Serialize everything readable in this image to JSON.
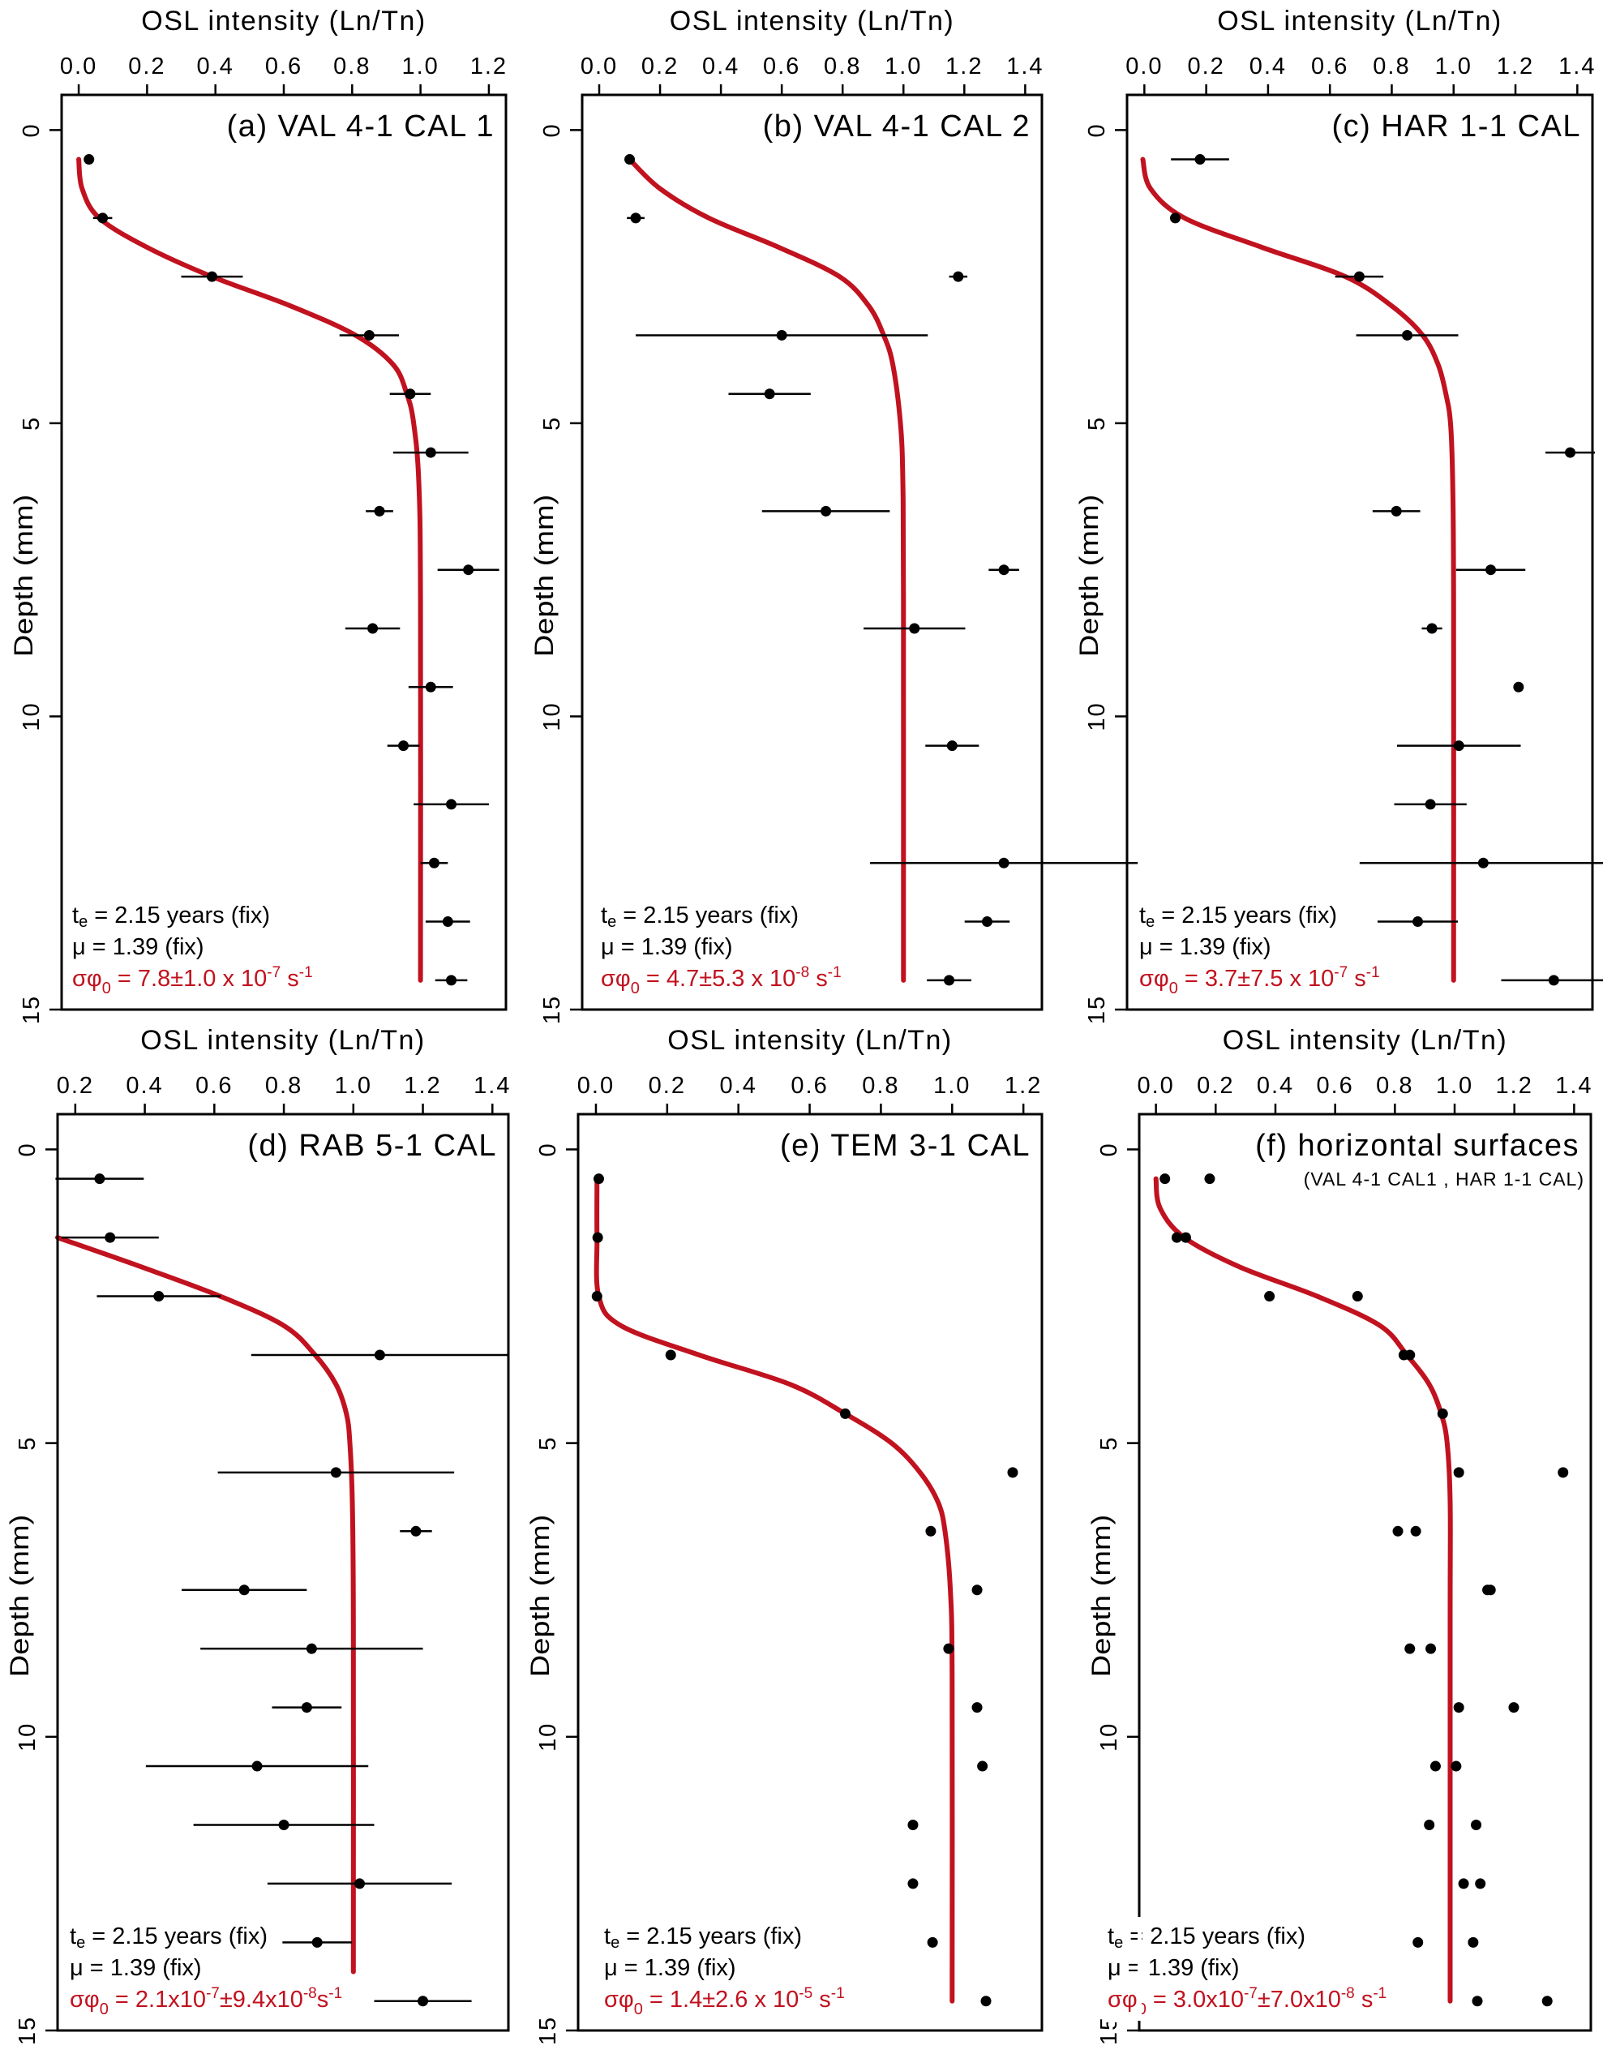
{
  "colors": {
    "fit_curve": "#c1121f",
    "points": "#000000",
    "sigma_text": "#c1121f"
  },
  "chart_data": [
    {
      "type": "scatter",
      "title": "(a) VAL 4-1 CAL 1",
      "xlabel": "OSL intensity (Ln/Tn)",
      "ylabel": "Depth (mm)",
      "x_axis_position": "top",
      "y_reversed": true,
      "xlim": [
        -0.05,
        1.25
      ],
      "ylim": [
        -0.6,
        15
      ],
      "xticks": [
        "0.0",
        "0.2",
        "0.4",
        "0.6",
        "0.8",
        "1.0",
        "1.2"
      ],
      "yticks": [
        "0",
        "5",
        "10",
        "15"
      ],
      "points": {
        "depth": [
          0.5,
          1.5,
          2.5,
          3.5,
          4.5,
          5.5,
          6.5,
          7.5,
          8.5,
          9.5,
          10.5,
          11.5,
          12.5,
          13.5,
          14.5
        ],
        "value": [
          0.03,
          0.07,
          0.39,
          0.85,
          0.97,
          1.03,
          0.88,
          1.14,
          0.86,
          1.03,
          0.95,
          1.09,
          1.04,
          1.08,
          1.09
        ],
        "error": [
          0,
          0.028,
          0.09,
          0.087,
          0.06,
          0.11,
          0.04,
          0.09,
          0.08,
          0.065,
          0.047,
          0.11,
          0.04,
          0.065,
          0.047
        ]
      },
      "fit_curve": {
        "depth": [
          0.5,
          1.0,
          1.5,
          2.0,
          2.5,
          3.0,
          3.5,
          4.0,
          4.5,
          5.0,
          6.0,
          8.0,
          14.5
        ],
        "value": [
          0.0,
          0.01,
          0.06,
          0.2,
          0.39,
          0.62,
          0.81,
          0.92,
          0.96,
          0.98,
          0.995,
          1.0,
          1.0
        ]
      },
      "annotations": {
        "te": {
          "main": "t",
          "sub": "e",
          "rest": " = 2.15 years (fix)"
        },
        "mu": "μ = 1.39 (fix)",
        "sigma": [
          {
            "text": "σφ"
          },
          {
            "sub": "0"
          },
          {
            "text": " = 7.8±1.0 x 10"
          },
          {
            "sup": "-7"
          },
          {
            "text": " s"
          },
          {
            "sup": "-1"
          }
        ]
      }
    },
    {
      "type": "scatter",
      "title": "(b) VAL 4-1 CAL 2",
      "xlabel": "OSL intensity (Ln/Tn)",
      "ylabel": "Depth (mm)",
      "x_axis_position": "top",
      "y_reversed": true,
      "xlim": [
        -0.056,
        1.455
      ],
      "ylim": [
        -0.6,
        15
      ],
      "xticks": [
        "0.0",
        "0.2",
        "0.4",
        "0.6",
        "0.8",
        "1.0",
        "1.2",
        "1.4"
      ],
      "yticks": [
        "0",
        "5",
        "10",
        "15"
      ],
      "points": {
        "depth": [
          0.5,
          1.5,
          2.5,
          3.5,
          4.5,
          6.5,
          7.5,
          8.5,
          10.5,
          12.5,
          13.5,
          14.5
        ],
        "value": [
          0.1,
          0.12,
          1.18,
          0.6,
          0.56,
          0.745,
          1.33,
          1.036,
          1.16,
          1.33,
          1.275,
          1.15
        ],
        "error": [
          0,
          0.029,
          0.03,
          0.48,
          0.135,
          0.21,
          0.05,
          0.167,
          0.088,
          0.44,
          0.074,
          0.073
        ]
      },
      "fit_curve": {
        "depth": [
          0.5,
          1.0,
          1.5,
          2.0,
          2.5,
          3.0,
          3.5,
          4.0,
          5.0,
          6.0,
          8.0,
          14.5
        ],
        "value": [
          0.1,
          0.2,
          0.36,
          0.59,
          0.79,
          0.886,
          0.935,
          0.965,
          0.99,
          0.998,
          1.0,
          1.0
        ]
      },
      "annotations": {
        "te": {
          "main": "t",
          "sub": "e",
          "rest": " = 2.15 years (fix)"
        },
        "mu": "μ = 1.39 (fix)",
        "sigma": [
          {
            "text": "σφ"
          },
          {
            "sub": "0"
          },
          {
            "text": " = 4.7±5.3 x 10"
          },
          {
            "sup": "-8"
          },
          {
            "text": " s"
          },
          {
            "sup": "-1"
          }
        ]
      }
    },
    {
      "type": "scatter",
      "title": "(c) HAR 1-1 CAL",
      "xlabel": "OSL intensity (Ln/Tn)",
      "ylabel": "Depth (mm)",
      "x_axis_position": "top",
      "y_reversed": true,
      "xlim": [
        -0.056,
        1.449
      ],
      "ylim": [
        -0.6,
        15
      ],
      "xticks": [
        "0.0",
        "0.2",
        "0.4",
        "0.6",
        "0.8",
        "1.0",
        "1.2",
        "1.4"
      ],
      "yticks": [
        "0",
        "5",
        "10",
        "15"
      ],
      "points": {
        "depth": [
          0.5,
          1.5,
          2.5,
          3.5,
          5.5,
          6.5,
          7.5,
          8.5,
          9.5,
          10.5,
          11.5,
          12.5,
          13.5,
          14.5
        ],
        "value": [
          0.18,
          0.1,
          0.695,
          0.85,
          1.377,
          0.815,
          1.12,
          0.93,
          1.21,
          1.017,
          0.925,
          1.096,
          0.884,
          1.324
        ],
        "error": [
          0.094,
          0,
          0.078,
          0.165,
          0.08,
          0.077,
          0.112,
          0.033,
          0,
          0.2,
          0.117,
          0.4,
          0.13,
          0.17
        ]
      },
      "fit_curve": {
        "depth": [
          0.5,
          1.0,
          1.5,
          2.0,
          2.5,
          3.0,
          3.5,
          4.0,
          4.5,
          5.0,
          6.0,
          8.0,
          14.5
        ],
        "value": [
          -0.005,
          0.02,
          0.13,
          0.38,
          0.65,
          0.8,
          0.9,
          0.95,
          0.975,
          0.99,
          0.997,
          1.0,
          1.0
        ]
      },
      "annotations": {
        "te": {
          "main": "t",
          "sub": "e",
          "rest": " = 2.15 years (fix)"
        },
        "mu": "μ = 1.39 (fix)",
        "sigma": [
          {
            "text": "σφ"
          },
          {
            "sub": "0"
          },
          {
            "text": " = 3.7±7.5 x 10"
          },
          {
            "sup": "-7"
          },
          {
            "text": " s"
          },
          {
            "sup": "-1"
          }
        ]
      }
    },
    {
      "type": "scatter",
      "title": "(d) RAB 5-1 CAL",
      "xlabel": "OSL intensity (Ln/Tn)",
      "ylabel": "Depth (mm)",
      "x_axis_position": "top",
      "y_reversed": true,
      "xlim": [
        0.149,
        1.446
      ],
      "ylim": [
        -0.6,
        15
      ],
      "xticks": [
        "0.2",
        "0.4",
        "0.6",
        "0.8",
        "1.0",
        "1.2",
        "1.4"
      ],
      "yticks": [
        "0",
        "5",
        "10",
        "15"
      ],
      "points": {
        "depth": [
          0.5,
          1.5,
          2.5,
          3.5,
          5.5,
          6.5,
          7.5,
          8.5,
          9.5,
          10.5,
          11.5,
          12.5,
          13.5,
          14.5
        ],
        "value": [
          0.27,
          0.3,
          0.44,
          1.076,
          0.95,
          1.18,
          0.686,
          0.88,
          0.866,
          0.723,
          0.8,
          1.018,
          0.896,
          1.2
        ],
        "error": [
          0.127,
          0.14,
          0.178,
          0.37,
          0.34,
          0.046,
          0.18,
          0.32,
          0.1,
          0.32,
          0.26,
          0.265,
          0.1,
          0.14
        ]
      },
      "fit_curve": {
        "depth": [
          1.5,
          2.0,
          2.5,
          3.0,
          3.5,
          4.0,
          4.5,
          5.0,
          6.0,
          8.0,
          14.0
        ],
        "value": [
          0.149,
          0.39,
          0.617,
          0.8,
          0.89,
          0.95,
          0.98,
          0.99,
          0.997,
          1.0,
          1.0
        ]
      },
      "annotations": {
        "te": {
          "main": "t",
          "sub": "e",
          "rest": " = 2.15 years (fix)"
        },
        "mu": "μ = 1.39 (fix)",
        "sigma": [
          {
            "text": "σφ"
          },
          {
            "sub": "0"
          },
          {
            "text": " = 2.1x10"
          },
          {
            "sup": "-7"
          },
          {
            "text": "±9.4x10"
          },
          {
            "sup": "-8"
          },
          {
            "text": "s"
          },
          {
            "sup": "-1"
          }
        ]
      }
    },
    {
      "type": "scatter",
      "title": "(e) TEM 3-1 CAL",
      "xlabel": "OSL intensity (Ln/Tn)",
      "ylabel": "Depth (mm)",
      "x_axis_position": "top",
      "y_reversed": true,
      "xlim": [
        -0.05,
        1.252
      ],
      "ylim": [
        -0.6,
        15
      ],
      "xticks": [
        "0.0",
        "0.2",
        "0.4",
        "0.6",
        "0.8",
        "1.0",
        "1.2"
      ],
      "yticks": [
        "0",
        "5",
        "10",
        "15"
      ],
      "points": {
        "depth": [
          0.5,
          1.5,
          2.5,
          3.5,
          4.5,
          5.5,
          6.5,
          7.5,
          8.5,
          9.5,
          10.5,
          11.5,
          12.5,
          13.5,
          14.5
        ],
        "value": [
          0.008,
          0.005,
          0.003,
          0.21,
          0.7,
          1.17,
          0.94,
          1.07,
          0.99,
          1.07,
          1.085,
          0.89,
          0.89,
          0.945,
          1.095
        ],
        "error": [
          0,
          0,
          0,
          0,
          0,
          0,
          0,
          0,
          0,
          0,
          0,
          0,
          0,
          0,
          0
        ]
      },
      "fit_curve": {
        "depth": [
          0.5,
          1.5,
          2.5,
          3.0,
          3.5,
          4.0,
          4.5,
          5.0,
          5.5,
          6.0,
          6.5,
          7.5,
          9.0,
          14.5
        ],
        "value": [
          0.003,
          0.003,
          0.008,
          0.07,
          0.29,
          0.545,
          0.7,
          0.83,
          0.91,
          0.96,
          0.98,
          0.995,
          1.0,
          1.0
        ]
      },
      "annotations": {
        "te": {
          "main": "t",
          "sub": "e",
          "rest": " = 2.15 years (fix)"
        },
        "mu": "μ = 1.39 (fix)",
        "sigma": [
          {
            "text": "σφ"
          },
          {
            "sub": "0"
          },
          {
            "text": " = 1.4±2.6 x 10"
          },
          {
            "sup": "-5"
          },
          {
            "text": " s"
          },
          {
            "sup": "-1"
          }
        ]
      }
    },
    {
      "type": "scatter",
      "title": "(f) horizontal surfaces",
      "subtitle": "(VAL 4-1 CAL1 , HAR 1-1 CAL)",
      "xlabel": "OSL intensity (Ln/Tn)",
      "ylabel": "Depth (mm)",
      "x_axis_position": "top",
      "y_reversed": true,
      "xlim": [
        -0.056,
        1.456
      ],
      "ylim": [
        -0.6,
        15
      ],
      "xticks": [
        "0.0",
        "0.2",
        "0.4",
        "0.6",
        "0.8",
        "1.0",
        "1.2",
        "1.4"
      ],
      "yticks": [
        "0",
        "5",
        "10",
        "15"
      ],
      "points": {
        "depth": [
          0.5,
          0.5,
          1.5,
          1.5,
          2.5,
          2.5,
          3.5,
          3.5,
          4.5,
          5.5,
          5.5,
          6.5,
          6.5,
          7.5,
          7.5,
          8.5,
          8.5,
          9.5,
          9.5,
          10.5,
          10.5,
          11.5,
          11.5,
          12.5,
          12.5,
          13.5,
          13.5,
          14.5,
          14.5
        ],
        "value": [
          0.03,
          0.18,
          0.07,
          0.1,
          0.38,
          0.675,
          0.83,
          0.85,
          0.96,
          1.014,
          1.363,
          0.81,
          0.87,
          1.11,
          1.12,
          0.85,
          0.92,
          1.014,
          1.198,
          0.936,
          1.005,
          0.915,
          1.072,
          1.03,
          1.086,
          0.877,
          1.062,
          1.076,
          1.31
        ],
        "error": [
          0,
          0,
          0,
          0,
          0,
          0,
          0,
          0,
          0,
          0,
          0,
          0,
          0,
          0,
          0,
          0,
          0,
          0,
          0,
          0,
          0,
          0,
          0,
          0,
          0,
          0,
          0,
          0,
          0
        ]
      },
      "fit_curve": {
        "depth": [
          0.5,
          1.0,
          1.5,
          2.0,
          2.5,
          3.0,
          3.5,
          4.0,
          4.5,
          5.0,
          6.0,
          8.0,
          14.5
        ],
        "value": [
          0.0,
          0.014,
          0.095,
          0.28,
          0.54,
          0.75,
          0.84,
          0.915,
          0.955,
          0.975,
          0.985,
          0.985,
          0.985
        ]
      },
      "annotations": {
        "te": {
          "main": "t",
          "sub": "e",
          "rest": " = 2.15 years (fix)"
        },
        "mu": "μ = 1.39 (fix)",
        "sigma": [
          {
            "text": "σφ"
          },
          {
            "sub": "0"
          },
          {
            "text": " = 3.0x10"
          },
          {
            "sup": "-7"
          },
          {
            "text": "±7.0x10"
          },
          {
            "sup": "-8"
          },
          {
            "text": " s"
          },
          {
            "sup": "-1"
          }
        ]
      }
    }
  ]
}
